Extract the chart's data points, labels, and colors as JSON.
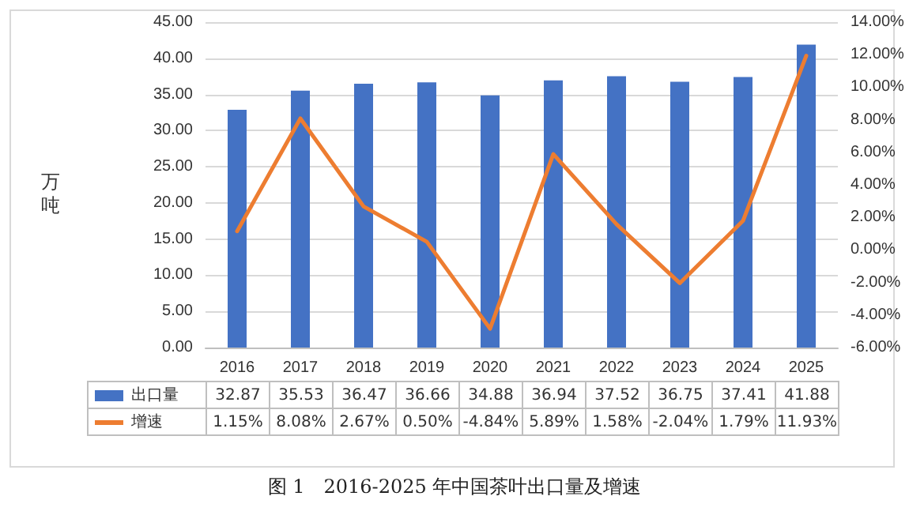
{
  "chart_data": {
    "type": "bar",
    "title": "图 1　2016-2025 年中国茶叶出口量及增速",
    "ylabel": "万吨",
    "categories": [
      "2016",
      "2017",
      "2018",
      "2019",
      "2020",
      "2021",
      "2022",
      "2023",
      "2024",
      "2025"
    ],
    "series": [
      {
        "name": "出口量",
        "color": "#4472c4",
        "values": [
          32.87,
          35.53,
          36.47,
          36.66,
          34.88,
          36.94,
          37.52,
          36.75,
          37.41,
          41.88
        ],
        "value_labels": [
          "32.87",
          "35.53",
          "36.47",
          "36.66",
          "34.88",
          "36.94",
          "37.52",
          "36.75",
          "37.41",
          "41.88"
        ]
      },
      {
        "name": "增速",
        "type": "line",
        "axis": "y2",
        "color": "#ed7d31",
        "values": [
          1.15,
          8.08,
          2.67,
          0.5,
          -4.84,
          5.89,
          1.58,
          -2.04,
          1.79,
          11.93
        ],
        "value_labels": [
          "1.15%",
          "8.08%",
          "2.67%",
          "0.50%",
          "-4.84%",
          "5.89%",
          "1.58%",
          "-2.04%",
          "1.79%",
          "11.93%"
        ]
      }
    ],
    "ylim": [
      0,
      45
    ],
    "yticks": [
      {
        "value": 0,
        "label": "0.00"
      },
      {
        "value": 5,
        "label": "5.00"
      },
      {
        "value": 10,
        "label": "10.00"
      },
      {
        "value": 15,
        "label": "15.00"
      },
      {
        "value": 20,
        "label": "20.00"
      },
      {
        "value": 25,
        "label": "25.00"
      },
      {
        "value": 30,
        "label": "30.00"
      },
      {
        "value": 35,
        "label": "35.00"
      },
      {
        "value": 40,
        "label": "40.00"
      },
      {
        "value": 45,
        "label": "45.00"
      }
    ],
    "y2lim": [
      -6,
      14
    ],
    "y2ticks": [
      {
        "value": -6,
        "label": "-6.00%"
      },
      {
        "value": -4,
        "label": "-4.00%"
      },
      {
        "value": -2,
        "label": "-2.00%"
      },
      {
        "value": 0,
        "label": "0.00%"
      },
      {
        "value": 2,
        "label": "2.00%"
      },
      {
        "value": 4,
        "label": "4.00%"
      },
      {
        "value": 6,
        "label": "6.00%"
      },
      {
        "value": 8,
        "label": "8.00%"
      },
      {
        "value": 10,
        "label": "10.00%"
      },
      {
        "value": 12,
        "label": "12.00%"
      },
      {
        "value": 14,
        "label": "14.00%"
      }
    ],
    "grid": "y",
    "legend": "bottom",
    "marker": "none",
    "line_style": "solid"
  }
}
